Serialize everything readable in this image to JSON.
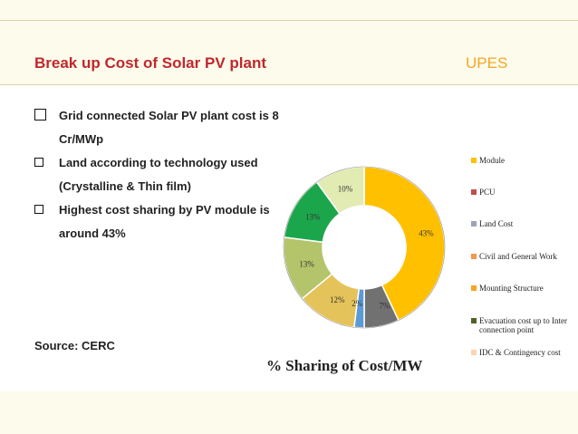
{
  "header": {
    "title": "Break up Cost of Solar PV plant",
    "logo": "UPES"
  },
  "bullets": [
    "Grid connected Solar PV plant  cost is 8 Cr/MWp",
    "Land according to  technology used (Crystalline & Thin film)",
    "Highest cost sharing by PV module is around 43%"
  ],
  "source": "Source: CERC",
  "colors": {
    "title": "#c0282d",
    "logo": "#f5a623",
    "band": "#fdfbec"
  },
  "chart_data": {
    "type": "pie",
    "title": "% Sharing of Cost/MW",
    "legend_position": "right",
    "categories": [
      "Module",
      "PCU",
      "Land Cost",
      "Civil and General Work",
      "Mounting Structure",
      "Evacuation cost up to Inter connection point",
      "IDC & Contingency cost"
    ],
    "values": [
      43,
      7,
      2,
      12,
      13,
      13,
      10
    ],
    "data_labels": [
      "43%",
      "7%",
      "2%",
      "12%",
      "13%",
      "13%",
      "10%"
    ],
    "slice_colors": [
      "#ffc000",
      "#717171",
      "#5b9bd5",
      "#e5c35b",
      "#b4c46b",
      "#1ca64c",
      "#e2ebb2"
    ],
    "legend_colors": [
      "#ffc000",
      "#c0504d",
      "#9da4b8",
      "#f2994a",
      "#f5a623",
      "#4f6228",
      "#fbd4b4"
    ]
  }
}
